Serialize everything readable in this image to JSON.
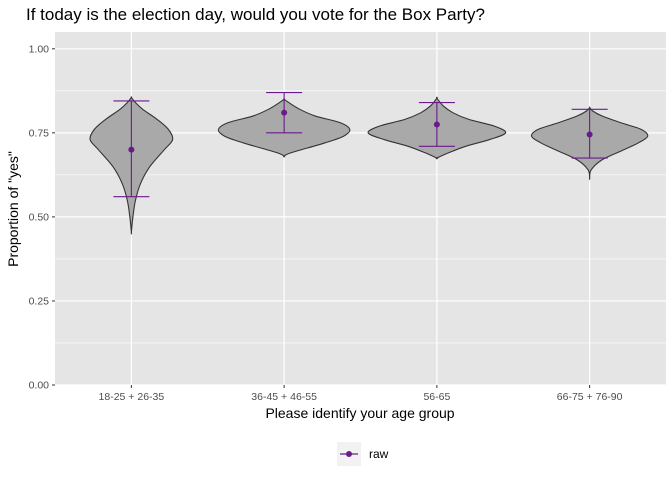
{
  "chart_data": {
    "type": "violin",
    "title": "If today is the election day, would you vote for the Box Party?",
    "xlabel": "Please identify your age group",
    "ylabel": "Proportion of \"yes\"",
    "categories": [
      "18-25 + 26-35",
      "36-45 + 46-55",
      "56-65",
      "66-75 + 76-90"
    ],
    "ylim": [
      0,
      1.05
    ],
    "yticks": [
      0,
      0.25,
      0.5,
      0.75,
      1.0
    ],
    "ytick_labels": [
      "0.00",
      "0.25",
      "0.50",
      "0.75",
      "1.00"
    ],
    "grid": true,
    "legend": {
      "position": "bottom",
      "entries": [
        {
          "label": "raw",
          "color": "#6a1b8a"
        }
      ]
    },
    "colors": {
      "panel": "#e5e5e5",
      "grid": "#ffffff",
      "violin_fill": "#a9a9a9",
      "violin_stroke": "#333333",
      "point": "#6a1b8a"
    },
    "violins": [
      {
        "min": 0.455,
        "max": 0.855,
        "mode": 0.73,
        "max_halfwidth": 0.27,
        "profile": [
          [
            0.455,
            0.0
          ],
          [
            0.5,
            0.015
          ],
          [
            0.55,
            0.04
          ],
          [
            0.6,
            0.09
          ],
          [
            0.65,
            0.18
          ],
          [
            0.7,
            0.32
          ],
          [
            0.73,
            0.4
          ],
          [
            0.76,
            0.36
          ],
          [
            0.79,
            0.25
          ],
          [
            0.82,
            0.11
          ],
          [
            0.84,
            0.04
          ],
          [
            0.855,
            0.0
          ]
        ]
      },
      {
        "min": 0.68,
        "max": 0.85,
        "mode": 0.76,
        "max_halfwidth": 0.43,
        "profile": [
          [
            0.68,
            0.0
          ],
          [
            0.69,
            0.04
          ],
          [
            0.72,
            0.26
          ],
          [
            0.74,
            0.38
          ],
          [
            0.76,
            0.42
          ],
          [
            0.78,
            0.36
          ],
          [
            0.8,
            0.2
          ],
          [
            0.82,
            0.1
          ],
          [
            0.84,
            0.03
          ],
          [
            0.85,
            0.0
          ]
        ]
      },
      {
        "min": 0.675,
        "max": 0.853,
        "mode": 0.75,
        "max_halfwidth": 0.45,
        "profile": [
          [
            0.675,
            0.0
          ],
          [
            0.69,
            0.07
          ],
          [
            0.71,
            0.18
          ],
          [
            0.73,
            0.33
          ],
          [
            0.75,
            0.43
          ],
          [
            0.77,
            0.36
          ],
          [
            0.79,
            0.2
          ],
          [
            0.81,
            0.1
          ],
          [
            0.83,
            0.04
          ],
          [
            0.853,
            0.0
          ]
        ]
      },
      {
        "min": 0.615,
        "max": 0.825,
        "mode": 0.74,
        "max_halfwidth": 0.38,
        "profile": [
          [
            0.615,
            0.0
          ],
          [
            0.64,
            0.01
          ],
          [
            0.67,
            0.08
          ],
          [
            0.7,
            0.22
          ],
          [
            0.72,
            0.31
          ],
          [
            0.74,
            0.37
          ],
          [
            0.76,
            0.33
          ],
          [
            0.78,
            0.2
          ],
          [
            0.8,
            0.08
          ],
          [
            0.815,
            0.02
          ],
          [
            0.825,
            0.0
          ]
        ]
      }
    ],
    "series": [
      {
        "name": "raw",
        "points": [
          {
            "category": "18-25 + 26-35",
            "y": 0.7,
            "low": 0.56,
            "high": 0.845
          },
          {
            "category": "36-45 + 46-55",
            "y": 0.81,
            "low": 0.75,
            "high": 0.87
          },
          {
            "category": "56-65",
            "y": 0.775,
            "low": 0.71,
            "high": 0.84
          },
          {
            "category": "66-75 + 76-90",
            "y": 0.745,
            "low": 0.675,
            "high": 0.82
          }
        ]
      }
    ]
  }
}
